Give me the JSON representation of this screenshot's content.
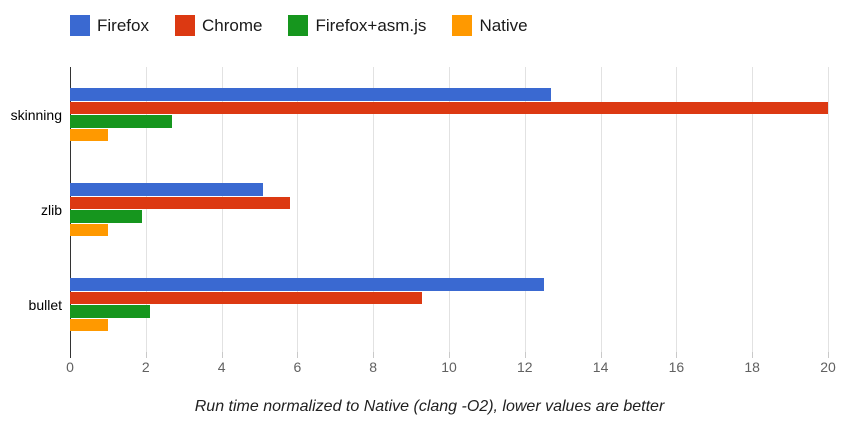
{
  "chart_data": {
    "type": "bar",
    "orientation": "horizontal",
    "title": "",
    "caption": "Run time normalized to Native (clang -O2), lower values are better",
    "categories": [
      "skinning",
      "zlib",
      "bullet"
    ],
    "series": [
      {
        "name": "Firefox",
        "color": "#3A69D1",
        "values": [
          12.7,
          5.1,
          12.5
        ]
      },
      {
        "name": "Chrome",
        "color": "#DC3912",
        "values": [
          20.0,
          5.8,
          9.3
        ]
      },
      {
        "name": "Firefox+asm.js",
        "color": "#16961E",
        "values": [
          2.7,
          1.9,
          2.1
        ]
      },
      {
        "name": "Native",
        "color": "#FF9900",
        "values": [
          1.0,
          1.0,
          1.0
        ]
      }
    ],
    "xlim": [
      0,
      20
    ],
    "ticks": [
      0,
      2,
      4,
      6,
      8,
      10,
      12,
      14,
      16,
      18,
      20
    ],
    "grid": true,
    "legend_position": "top",
    "style": {
      "gridline_color": "#e2e2e2",
      "axis_line_color": "#333333",
      "tick_label_color": "#616161",
      "legend_text_color": "#1a1a1a"
    }
  }
}
